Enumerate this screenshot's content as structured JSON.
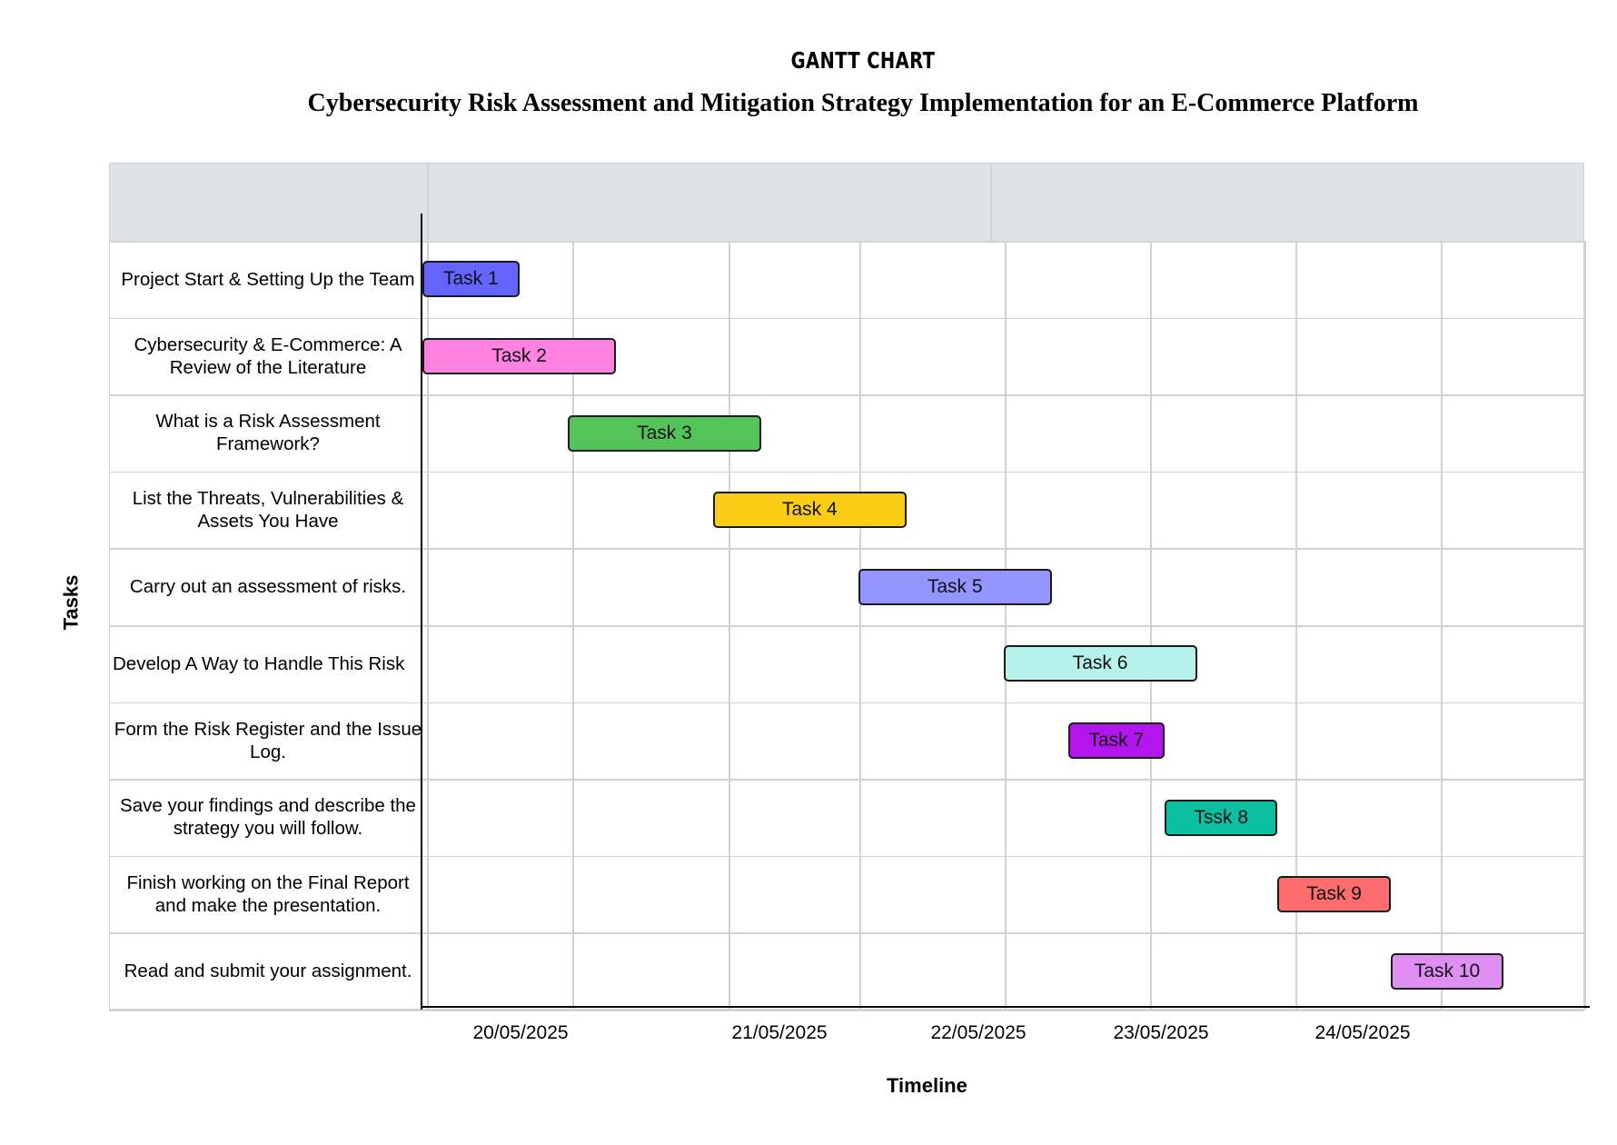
{
  "header": {
    "title": "GANTT CHART",
    "subtitle": "Cybersecurity Risk Assessment and Mitigation Strategy Implementation for an E-Commerce Platform"
  },
  "chart_data": {
    "type": "gantt",
    "title": "GANTT CHART",
    "subtitle": "Cybersecurity Risk Assessment and Mitigation Strategy Implementation for an E-Commerce Platform",
    "xlabel": "Timeline",
    "ylabel": "Tasks",
    "x_ticks": [
      "20/05/2025",
      "21/05/2025",
      "22/05/2025",
      "23/05/2025",
      "24/05/2025"
    ],
    "x_range": [
      "19/05/2025 12:00",
      "25/05/2025 12:00"
    ],
    "grid": true,
    "tasks": [
      {
        "label": "Project Start & Setting Up the Team",
        "bar_label": "Task 1",
        "start": "19/05/2025 12:00",
        "end": "20/05/2025 00:00",
        "color": "#6464ff"
      },
      {
        "label": "Cybersecurity & E-Commerce: A Review of the Literature",
        "bar_label": "Task 2",
        "start": "19/05/2025 12:00",
        "end": "20/05/2025 12:00",
        "color": "#ff82e0"
      },
      {
        "label": "What is a Risk Assessment Framework?",
        "bar_label": "Task 3",
        "start": "20/05/2025 06:00",
        "end": "21/05/2025 06:00",
        "color": "#54c45a"
      },
      {
        "label": "List the Threats, Vulnerabilities & Assets You Have",
        "bar_label": "Task 4",
        "start": "21/05/2025 00:00",
        "end": "22/05/2025 00:00",
        "color": "#facc15"
      },
      {
        "label": "Carry out an assessment of risks.",
        "bar_label": "Task 5",
        "start": "21/05/2025 18:00",
        "end": "22/05/2025 18:00",
        "color": "#9595ff"
      },
      {
        "label": "Develop A Way to Handle This Risk",
        "bar_label": "Task 6",
        "start": "22/05/2025 12:00",
        "end": "23/05/2025 12:00",
        "color": "#b5f3ea"
      },
      {
        "label": "Form the Risk Register and the Issue Log.",
        "bar_label": "Task 7",
        "start": "22/05/2025 20:00",
        "end": "23/05/2025 08:00",
        "color": "#b414ee"
      },
      {
        "label": "Save your findings and describe the strategy you will follow.",
        "bar_label": "Tssk 8",
        "start": "23/05/2025 08:00",
        "end": "23/05/2025 22:00",
        "color": "#0bbfa0"
      },
      {
        "label": "Finish working on the Final Report and make the presentation.",
        "bar_label": "Task 9",
        "start": "23/05/2025 22:00",
        "end": "24/05/2025 12:00",
        "color": "#fd6d6d"
      },
      {
        "label": "Read and submit your assignment.",
        "bar_label": "Task 10",
        "start": "24/05/2025 12:00",
        "end": "25/05/2025 02:00",
        "color": "#df8ef3"
      }
    ]
  }
}
